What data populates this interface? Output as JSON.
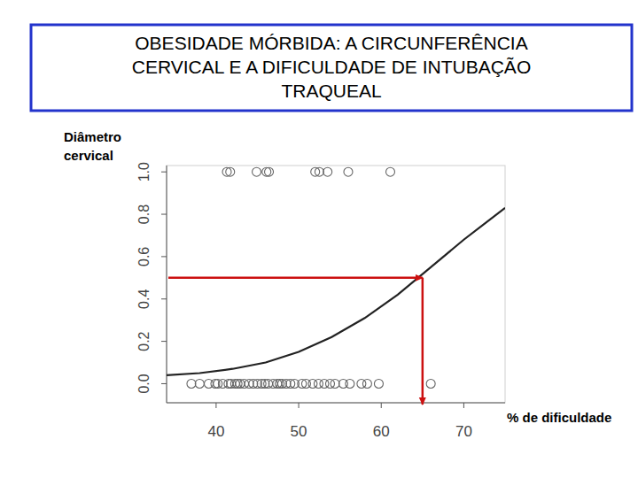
{
  "chart_data": {
    "type": "scatter",
    "title": [
      "OBESIDADE MÓRBIDA: A CIRCUNFERÊNCIA",
      "CERVICAL E A DIFICULDADE DE INTUBAÇÃO",
      "TRAQUEAL"
    ],
    "y_label": "Diâmetro cervical",
    "x_label": "% de dificuldade",
    "xlim": [
      34,
      75
    ],
    "ylim": [
      -0.09,
      1.03
    ],
    "xticks": [
      40,
      50,
      60,
      70
    ],
    "yticks": [
      {
        "value": 0,
        "label": "0.0"
      },
      0.2,
      0.4,
      0.6,
      0.8,
      {
        "value": 1,
        "label": "1.0"
      }
    ],
    "grid": false,
    "series": [
      {
        "type": "line",
        "color": "#222222",
        "line_style": "solid",
        "x": [
          34,
          38,
          42,
          46,
          50,
          54,
          58,
          62,
          66,
          70,
          75
        ],
        "values": [
          0.04,
          0.05,
          0.07,
          0.1,
          0.15,
          0.22,
          0.31,
          0.42,
          0.55,
          0.68,
          0.83
        ]
      },
      {
        "type": "scatter",
        "color": "#666666",
        "marker": "open-circle",
        "x": [
          41.3,
          41.7,
          44.9,
          46.1,
          46.4,
          52.0,
          52.5,
          53.5,
          56.0,
          61.1,
          37.0,
          38.0,
          39.1,
          39.9,
          40.2,
          40.8,
          41.5,
          41.8,
          42.3,
          42.6,
          42.9,
          43.4,
          44.0,
          44.5,
          45.0,
          45.5,
          45.9,
          46.3,
          46.9,
          47.4,
          47.7,
          48.0,
          48.5,
          49.0,
          49.5,
          50.4,
          50.9,
          51.7,
          52.4,
          53.1,
          53.8,
          54.4,
          55.4,
          56.2,
          57.6,
          58.3,
          59.7,
          66.0
        ],
        "values": [
          1,
          1,
          1,
          1,
          1,
          1,
          1,
          1,
          1,
          1,
          0,
          0,
          0,
          0,
          0,
          0,
          0,
          0,
          0,
          0,
          0,
          0,
          0,
          0,
          0,
          0,
          0,
          0,
          0,
          0,
          0,
          0,
          0,
          0,
          0,
          0,
          0,
          0,
          0,
          0,
          0,
          0,
          0,
          0,
          0,
          0,
          0,
          0
        ]
      }
    ],
    "reference": {
      "x": 65,
      "y": 0.5,
      "color": "#cc1111"
    }
  }
}
